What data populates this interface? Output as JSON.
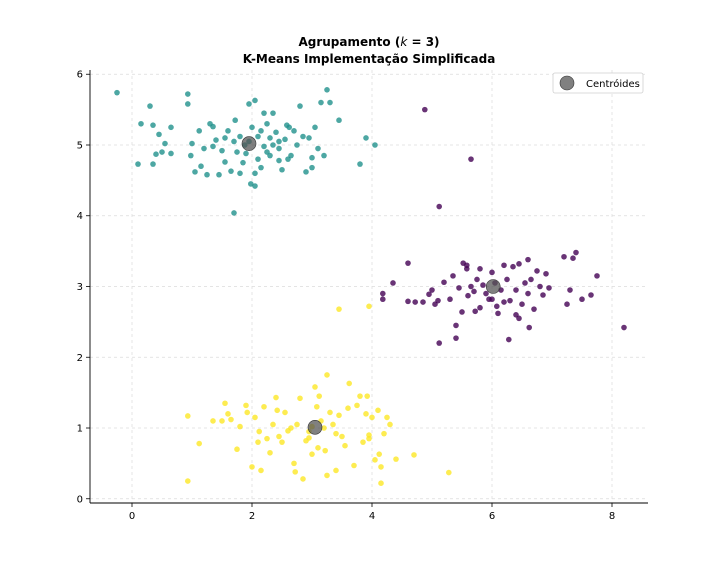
{
  "chart_data": {
    "type": "scatter",
    "title_line1_prefix": "Agrupamento (",
    "title_line1_math": "k",
    "title_line1_suffix": " = 3)",
    "title_line2": "K-Means Implementação Simplificada",
    "xlabel": "",
    "ylabel": "",
    "xlim": [
      -0.7,
      8.6
    ],
    "ylim": [
      -0.06,
      6.06
    ],
    "x_ticks": [
      "0",
      "2",
      "4",
      "6",
      "8"
    ],
    "y_ticks": [
      "0",
      "1",
      "2",
      "3",
      "4",
      "5",
      "6"
    ],
    "grid": true,
    "legend_position": "top-right",
    "legend": [
      {
        "label": "Centróides",
        "color": "#555555"
      }
    ],
    "series": [
      {
        "color": "#21918c",
        "points": [
          [
            -0.25,
            5.74
          ],
          [
            0.15,
            5.3
          ],
          [
            0.3,
            5.55
          ],
          [
            0.35,
            5.28
          ],
          [
            0.45,
            5.15
          ],
          [
            0.55,
            5.02
          ],
          [
            0.5,
            4.9
          ],
          [
            0.65,
            5.25
          ],
          [
            0.65,
            4.88
          ],
          [
            0.4,
            4.87
          ],
          [
            0.1,
            4.73
          ],
          [
            0.35,
            4.73
          ],
          [
            0.93,
            5.72
          ],
          [
            0.93,
            5.58
          ],
          [
            1.0,
            5.02
          ],
          [
            0.98,
            4.85
          ],
          [
            1.05,
            4.62
          ],
          [
            1.12,
            5.2
          ],
          [
            1.2,
            4.95
          ],
          [
            1.15,
            4.7
          ],
          [
            1.25,
            4.58
          ],
          [
            1.3,
            5.3
          ],
          [
            1.35,
            5.26
          ],
          [
            1.4,
            5.07
          ],
          [
            1.45,
            4.58
          ],
          [
            1.5,
            4.92
          ],
          [
            1.55,
            5.1
          ],
          [
            1.55,
            4.76
          ],
          [
            1.6,
            5.2
          ],
          [
            1.65,
            4.63
          ],
          [
            1.7,
            5.05
          ],
          [
            1.72,
            5.35
          ],
          [
            1.75,
            4.9
          ],
          [
            1.8,
            5.12
          ],
          [
            1.8,
            4.6
          ],
          [
            1.85,
            4.75
          ],
          [
            1.88,
            5.0
          ],
          [
            1.9,
            4.88
          ],
          [
            1.95,
            5.58
          ],
          [
            1.95,
            5.05
          ],
          [
            1.98,
            4.45
          ],
          [
            2.0,
            5.25
          ],
          [
            2.05,
            4.42
          ],
          [
            2.05,
            5.63
          ],
          [
            2.1,
            5.12
          ],
          [
            2.1,
            4.8
          ],
          [
            2.15,
            5.2
          ],
          [
            2.15,
            4.68
          ],
          [
            2.2,
            5.45
          ],
          [
            2.2,
            4.98
          ],
          [
            2.25,
            5.3
          ],
          [
            2.25,
            4.9
          ],
          [
            2.3,
            5.1
          ],
          [
            2.3,
            4.85
          ],
          [
            2.35,
            5.45
          ],
          [
            2.35,
            5.0
          ],
          [
            2.4,
            5.18
          ],
          [
            2.45,
            4.95
          ],
          [
            2.45,
            4.78
          ],
          [
            2.5,
            4.65
          ],
          [
            2.55,
            5.08
          ],
          [
            2.58,
            5.28
          ],
          [
            2.6,
            4.8
          ],
          [
            2.62,
            5.25
          ],
          [
            2.65,
            4.85
          ],
          [
            2.7,
            5.2
          ],
          [
            2.75,
            5.0
          ],
          [
            2.8,
            5.55
          ],
          [
            2.85,
            5.12
          ],
          [
            2.9,
            4.62
          ],
          [
            2.95,
            5.1
          ],
          [
            3.0,
            4.82
          ],
          [
            3.0,
            4.68
          ],
          [
            3.05,
            5.25
          ],
          [
            3.1,
            4.95
          ],
          [
            3.15,
            5.6
          ],
          [
            3.2,
            4.85
          ],
          [
            3.25,
            5.78
          ],
          [
            3.3,
            5.6
          ],
          [
            3.45,
            5.35
          ],
          [
            3.8,
            4.73
          ],
          [
            3.9,
            5.1
          ],
          [
            4.05,
            5.0
          ],
          [
            1.7,
            4.04
          ],
          [
            2.05,
            4.6
          ],
          [
            2.45,
            5.05
          ],
          [
            1.35,
            4.98
          ]
        ]
      },
      {
        "color": "#440154",
        "points": [
          [
            4.88,
            5.5
          ],
          [
            5.65,
            4.8
          ],
          [
            5.12,
            4.13
          ],
          [
            4.18,
            2.9
          ],
          [
            4.18,
            2.82
          ],
          [
            4.35,
            3.05
          ],
          [
            4.6,
            3.33
          ],
          [
            4.6,
            2.79
          ],
          [
            4.72,
            2.78
          ],
          [
            4.85,
            2.78
          ],
          [
            4.95,
            2.89
          ],
          [
            5.0,
            2.95
          ],
          [
            5.05,
            2.75
          ],
          [
            5.12,
            2.2
          ],
          [
            5.2,
            3.06
          ],
          [
            5.3,
            2.82
          ],
          [
            5.35,
            3.15
          ],
          [
            5.4,
            2.45
          ],
          [
            5.4,
            2.27
          ],
          [
            5.45,
            2.98
          ],
          [
            5.5,
            2.64
          ],
          [
            5.52,
            3.33
          ],
          [
            5.58,
            3.3
          ],
          [
            5.58,
            3.25
          ],
          [
            5.6,
            2.87
          ],
          [
            5.65,
            3.0
          ],
          [
            5.7,
            2.93
          ],
          [
            5.72,
            2.65
          ],
          [
            5.75,
            3.1
          ],
          [
            5.8,
            3.25
          ],
          [
            5.85,
            3.02
          ],
          [
            5.9,
            2.9
          ],
          [
            5.95,
            2.82
          ],
          [
            6.0,
            3.2
          ],
          [
            6.05,
            3.05
          ],
          [
            6.08,
            2.72
          ],
          [
            6.1,
            2.62
          ],
          [
            6.15,
            2.95
          ],
          [
            6.2,
            3.3
          ],
          [
            6.2,
            2.78
          ],
          [
            6.25,
            3.1
          ],
          [
            6.28,
            2.25
          ],
          [
            6.3,
            2.8
          ],
          [
            6.35,
            3.28
          ],
          [
            6.4,
            2.95
          ],
          [
            6.4,
            2.6
          ],
          [
            6.45,
            3.32
          ],
          [
            6.5,
            2.75
          ],
          [
            6.55,
            3.05
          ],
          [
            6.6,
            3.38
          ],
          [
            6.6,
            2.9
          ],
          [
            6.62,
            2.42
          ],
          [
            6.65,
            3.1
          ],
          [
            6.7,
            2.68
          ],
          [
            6.75,
            3.22
          ],
          [
            6.8,
            3.0
          ],
          [
            6.85,
            2.88
          ],
          [
            6.9,
            3.18
          ],
          [
            6.95,
            2.98
          ],
          [
            7.2,
            3.42
          ],
          [
            7.25,
            2.75
          ],
          [
            7.3,
            2.95
          ],
          [
            7.35,
            3.4
          ],
          [
            7.4,
            3.48
          ],
          [
            7.5,
            2.82
          ],
          [
            7.65,
            2.88
          ],
          [
            7.75,
            3.15
          ],
          [
            8.2,
            2.42
          ],
          [
            5.1,
            2.8
          ],
          [
            5.8,
            2.7
          ],
          [
            6.45,
            2.55
          ],
          [
            6.0,
            2.82
          ]
        ]
      },
      {
        "color": "#fde725",
        "points": [
          [
            0.93,
            1.17
          ],
          [
            0.93,
            0.25
          ],
          [
            1.12,
            0.78
          ],
          [
            1.35,
            1.1
          ],
          [
            1.5,
            1.1
          ],
          [
            1.55,
            1.35
          ],
          [
            1.6,
            1.2
          ],
          [
            1.65,
            1.12
          ],
          [
            1.75,
            0.7
          ],
          [
            1.8,
            1.02
          ],
          [
            1.9,
            1.32
          ],
          [
            1.92,
            1.22
          ],
          [
            2.0,
            0.45
          ],
          [
            2.05,
            1.15
          ],
          [
            2.1,
            0.8
          ],
          [
            2.12,
            0.95
          ],
          [
            2.15,
            0.4
          ],
          [
            2.2,
            1.3
          ],
          [
            2.25,
            0.85
          ],
          [
            2.3,
            0.65
          ],
          [
            2.35,
            1.05
          ],
          [
            2.4,
            1.43
          ],
          [
            2.42,
            1.25
          ],
          [
            2.45,
            0.88
          ],
          [
            2.5,
            0.8
          ],
          [
            2.55,
            1.22
          ],
          [
            2.6,
            0.96
          ],
          [
            2.65,
            1.0
          ],
          [
            2.7,
            0.5
          ],
          [
            2.72,
            0.38
          ],
          [
            2.75,
            1.05
          ],
          [
            2.8,
            1.42
          ],
          [
            2.85,
            0.28
          ],
          [
            2.9,
            0.82
          ],
          [
            2.95,
            0.95
          ],
          [
            3.0,
            0.63
          ],
          [
            3.0,
            1.02
          ],
          [
            3.05,
            1.58
          ],
          [
            3.08,
            1.3
          ],
          [
            3.1,
            0.72
          ],
          [
            3.12,
            1.45
          ],
          [
            3.15,
            1.1
          ],
          [
            3.2,
            1.0
          ],
          [
            3.22,
            0.68
          ],
          [
            3.25,
            1.75
          ],
          [
            3.25,
            0.33
          ],
          [
            3.3,
            1.22
          ],
          [
            3.35,
            1.05
          ],
          [
            3.4,
            0.4
          ],
          [
            3.45,
            1.18
          ],
          [
            3.5,
            0.88
          ],
          [
            3.55,
            0.75
          ],
          [
            3.6,
            1.28
          ],
          [
            3.62,
            1.63
          ],
          [
            3.7,
            0.47
          ],
          [
            3.75,
            1.32
          ],
          [
            3.8,
            1.45
          ],
          [
            3.85,
            0.8
          ],
          [
            3.9,
            1.2
          ],
          [
            3.92,
            1.45
          ],
          [
            3.95,
            0.85
          ],
          [
            4.0,
            1.15
          ],
          [
            4.05,
            0.55
          ],
          [
            4.1,
            1.25
          ],
          [
            4.12,
            0.63
          ],
          [
            4.15,
            0.22
          ],
          [
            4.15,
            0.45
          ],
          [
            4.2,
            0.92
          ],
          [
            4.25,
            1.15
          ],
          [
            4.3,
            1.05
          ],
          [
            4.4,
            0.56
          ],
          [
            4.7,
            0.62
          ],
          [
            5.28,
            0.37
          ],
          [
            3.45,
            2.68
          ],
          [
            3.95,
            2.72
          ],
          [
            3.95,
            0.9
          ],
          [
            3.4,
            0.92
          ],
          [
            2.95,
            0.86
          ]
        ]
      }
    ],
    "centroids": [
      [
        1.95,
        5.02
      ],
      [
        6.02,
        3.0
      ],
      [
        3.05,
        1.01
      ]
    ]
  }
}
